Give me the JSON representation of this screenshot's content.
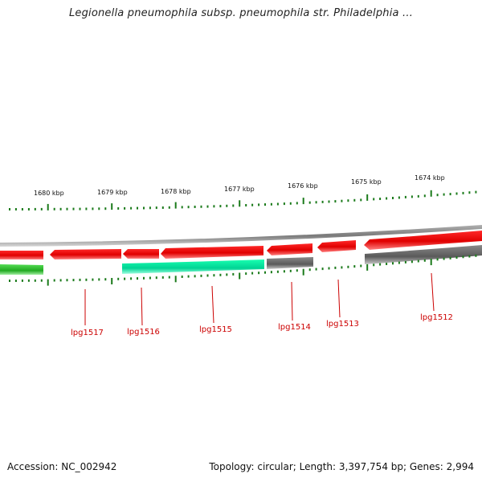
{
  "title": "Legionella pneumophila subsp. pneumophila str. Philadelphia ...",
  "footer": {
    "accession": "Accession: NC_002942",
    "summary": "Topology: circular; Length: 3,397,754 bp; Genes: 2,994"
  },
  "colors": {
    "forward_gene": "#e60000",
    "reverse_cds": "#00e6a0",
    "reverse_gray": "#6e6e6e",
    "green_segment": "#33bb33",
    "backbone": "#8c8c8c",
    "tick": "#1a7a1a",
    "label": "#cc0000"
  },
  "scale_labels": [
    "1680 kbp",
    "1679 kbp",
    "1678 kbp",
    "1677 kbp",
    "1676 kbp",
    "1675 kbp",
    "1674 kbp"
  ],
  "gene_labels": [
    "lpg1517",
    "lpg1516",
    "lpg1515",
    "lpg1514",
    "lpg1513",
    "lpg1512"
  ]
}
